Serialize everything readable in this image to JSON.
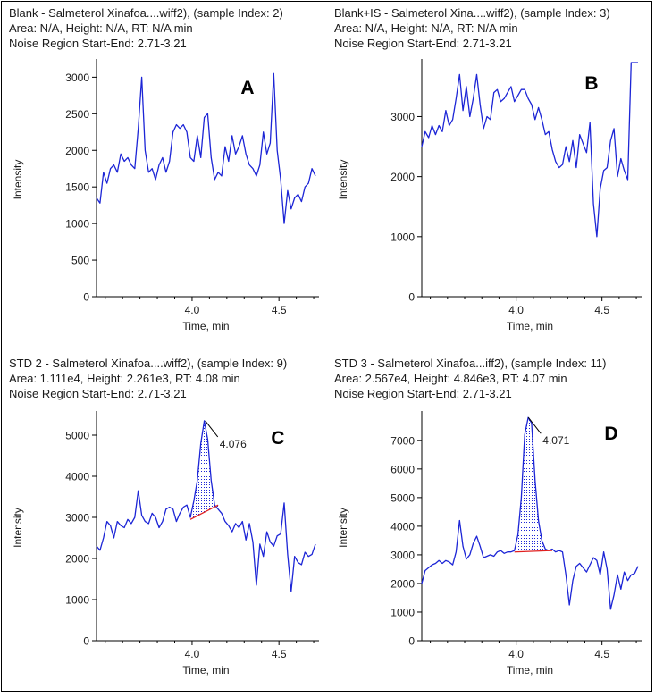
{
  "colors": {
    "trace": "#1c25d6",
    "baseline": "#e02020",
    "axis": "#000000",
    "text": "#1a1a1a"
  },
  "chart_data": [
    {
      "id": "A",
      "type": "line",
      "panel_letter": "A",
      "header": [
        "Blank - Salmeterol Xinafoa....wiff2), (sample Index: 2)",
        "Area: N/A, Height: N/A, RT: N/A min",
        "Noise Region Start-End: 2.71-3.21"
      ],
      "xlabel": "Time, min",
      "ylabel": "Intensity",
      "xlim": [
        3.45,
        4.71
      ],
      "ylim": [
        0,
        3200
      ],
      "x_ticks": [
        "4.0",
        "4.5"
      ],
      "x_tick_values": [
        4.0,
        4.5
      ],
      "y_ticks": [
        "0",
        "500",
        "1000",
        "1500",
        "2000",
        "2500",
        "3000"
      ],
      "y_tick_values": [
        0,
        500,
        1000,
        1500,
        2000,
        2500,
        3000
      ],
      "series": [
        {
          "x": [
            3.45,
            3.47,
            3.49,
            3.51,
            3.53,
            3.55,
            3.57,
            3.59,
            3.61,
            3.63,
            3.65,
            3.67,
            3.69,
            3.71,
            3.73,
            3.75,
            3.77,
            3.79,
            3.81,
            3.83,
            3.85,
            3.87,
            3.89,
            3.91,
            3.93,
            3.95,
            3.97,
            3.99,
            4.01,
            4.03,
            4.05,
            4.07,
            4.09,
            4.11,
            4.13,
            4.15,
            4.17,
            4.19,
            4.21,
            4.23,
            4.25,
            4.27,
            4.29,
            4.31,
            4.33,
            4.35,
            4.37,
            4.39,
            4.41,
            4.43,
            4.45,
            4.47,
            4.49,
            4.51,
            4.53,
            4.55,
            4.57,
            4.59,
            4.61,
            4.63,
            4.65,
            4.67,
            4.69,
            4.71
          ],
          "values": [
            1350,
            1280,
            1700,
            1550,
            1750,
            1800,
            1700,
            1950,
            1850,
            1900,
            1800,
            1750,
            2300,
            3000,
            2000,
            1700,
            1750,
            1600,
            1800,
            1900,
            1700,
            1850,
            2250,
            2350,
            2300,
            2350,
            2250,
            1900,
            1850,
            2200,
            1900,
            2450,
            2500,
            1900,
            1600,
            1700,
            1650,
            2050,
            1850,
            2200,
            1950,
            2050,
            2200,
            1950,
            1800,
            1750,
            1650,
            1800,
            2250,
            1950,
            2100,
            3050,
            2000,
            1600,
            1000,
            1450,
            1200,
            1350,
            1400,
            1300,
            1500,
            1550,
            1750,
            1650
          ]
        }
      ],
      "annotations": []
    },
    {
      "id": "B",
      "type": "line",
      "panel_letter": "B",
      "header": [
        "Blank+IS - Salmeterol Xina....wiff2), (sample Index: 3)",
        "Area: N/A, Height: N/A, RT: N/A min",
        "Noise Region Start-End: 2.71-3.21"
      ],
      "xlabel": "Time, min",
      "ylabel": "Intensity",
      "xlim": [
        3.45,
        4.71
      ],
      "ylim": [
        0,
        3900
      ],
      "x_ticks": [
        "4.0",
        "4.5"
      ],
      "x_tick_values": [
        4.0,
        4.5
      ],
      "y_ticks": [
        "0",
        "1000",
        "2000",
        "3000"
      ],
      "y_tick_values": [
        0,
        1000,
        2000,
        3000
      ],
      "series": [
        {
          "x": [
            3.45,
            3.47,
            3.49,
            3.51,
            3.53,
            3.55,
            3.57,
            3.59,
            3.61,
            3.63,
            3.65,
            3.67,
            3.69,
            3.71,
            3.73,
            3.75,
            3.77,
            3.79,
            3.81,
            3.83,
            3.85,
            3.87,
            3.89,
            3.91,
            3.93,
            3.95,
            3.97,
            3.99,
            4.01,
            4.03,
            4.05,
            4.07,
            4.09,
            4.11,
            4.13,
            4.15,
            4.17,
            4.19,
            4.21,
            4.23,
            4.25,
            4.27,
            4.29,
            4.31,
            4.33,
            4.35,
            4.37,
            4.39,
            4.41,
            4.43,
            4.45,
            4.47,
            4.49,
            4.51,
            4.53,
            4.55,
            4.57,
            4.59,
            4.61,
            4.63,
            4.65,
            4.67,
            4.69,
            4.71
          ],
          "values": [
            2500,
            2750,
            2650,
            2850,
            2700,
            2850,
            2750,
            3100,
            2850,
            2950,
            3300,
            3700,
            3100,
            3500,
            3000,
            3300,
            3700,
            3200,
            2800,
            3000,
            2950,
            3400,
            3450,
            3250,
            3300,
            3400,
            3500,
            3250,
            3350,
            3450,
            3450,
            3300,
            3200,
            2950,
            3150,
            2950,
            2700,
            2750,
            2450,
            2250,
            2150,
            2200,
            2500,
            2250,
            2600,
            2150,
            2700,
            2550,
            2400,
            2900,
            1550,
            1000,
            1800,
            2100,
            2150,
            2600,
            2800,
            2000,
            2300,
            2100,
            1950,
            3900,
            3900,
            3900
          ]
        }
      ],
      "annotations": []
    },
    {
      "id": "C",
      "type": "line",
      "panel_letter": "C",
      "header": [
        "STD 2 - Salmeterol Xinafoa....wiff2), (sample Index: 9)",
        "Area: 1.111e4, Height: 2.261e3, RT: 4.08 min",
        "Noise Region Start-End: 2.71-3.21"
      ],
      "xlabel": "Time, min",
      "ylabel": "Intensity",
      "xlim": [
        3.45,
        4.71
      ],
      "ylim": [
        0,
        5500
      ],
      "x_ticks": [
        "4.0",
        "4.5"
      ],
      "x_tick_values": [
        4.0,
        4.5
      ],
      "y_ticks": [
        "0",
        "1000",
        "2000",
        "3000",
        "4000",
        "5000"
      ],
      "y_tick_values": [
        0,
        1000,
        2000,
        3000,
        4000,
        5000
      ],
      "series": [
        {
          "x": [
            3.45,
            3.47,
            3.49,
            3.51,
            3.53,
            3.55,
            3.57,
            3.59,
            3.61,
            3.63,
            3.65,
            3.67,
            3.69,
            3.71,
            3.73,
            3.75,
            3.77,
            3.79,
            3.81,
            3.83,
            3.85,
            3.87,
            3.89,
            3.91,
            3.93,
            3.95,
            3.97,
            3.99,
            4.01,
            4.03,
            4.05,
            4.07,
            4.09,
            4.11,
            4.13,
            4.15,
            4.17,
            4.19,
            4.21,
            4.23,
            4.25,
            4.27,
            4.29,
            4.31,
            4.33,
            4.35,
            4.37,
            4.39,
            4.41,
            4.43,
            4.45,
            4.47,
            4.49,
            4.51,
            4.53,
            4.55,
            4.57,
            4.59,
            4.61,
            4.63,
            4.65,
            4.67,
            4.69,
            4.71
          ],
          "values": [
            2300,
            2200,
            2500,
            2900,
            2800,
            2500,
            2900,
            2800,
            2750,
            2950,
            2850,
            3000,
            3650,
            3050,
            2900,
            2850,
            3100,
            3000,
            2750,
            2900,
            3200,
            3250,
            3200,
            2900,
            3100,
            3250,
            3300,
            3000,
            3400,
            3900,
            4800,
            5350,
            4900,
            3900,
            3300,
            3200,
            3100,
            2900,
            2800,
            2650,
            2850,
            2750,
            2900,
            2450,
            2850,
            2400,
            1350,
            2350,
            2050,
            2650,
            2400,
            2300,
            2550,
            2600,
            3350,
            2100,
            1200,
            2050,
            1900,
            1850,
            2150,
            2050,
            2100,
            2350
          ]
        }
      ],
      "peak_fill_range": [
        3.99,
        4.15
      ],
      "baseline": {
        "x": [
          3.99,
          4.15
        ],
        "y": [
          2950,
          3300
        ]
      },
      "annotations": [
        {
          "text": "4.076",
          "x": 4.076,
          "y": 5350
        }
      ]
    },
    {
      "id": "D",
      "type": "line",
      "panel_letter": "D",
      "header": [
        "STD 3 - Salmeterol Xinafoa...iff2), (sample Index: 11)",
        "Area: 2.567e4, Height: 4.846e3, RT: 4.07 min",
        "Noise Region Start-End: 2.71-3.21"
      ],
      "xlabel": "Time, min",
      "ylabel": "Intensity",
      "xlim": [
        3.45,
        4.71
      ],
      "ylim": [
        0,
        7900
      ],
      "x_ticks": [
        "4.0",
        "4.5"
      ],
      "x_tick_values": [
        4.0,
        4.5
      ],
      "y_ticks": [
        "0",
        "1000",
        "2000",
        "3000",
        "4000",
        "5000",
        "6000",
        "7000"
      ],
      "y_tick_values": [
        0,
        1000,
        2000,
        3000,
        4000,
        5000,
        6000,
        7000
      ],
      "series": [
        {
          "x": [
            3.45,
            3.47,
            3.49,
            3.51,
            3.53,
            3.55,
            3.57,
            3.59,
            3.61,
            3.63,
            3.65,
            3.67,
            3.69,
            3.71,
            3.73,
            3.75,
            3.77,
            3.79,
            3.81,
            3.83,
            3.85,
            3.87,
            3.89,
            3.91,
            3.93,
            3.95,
            3.97,
            3.99,
            4.01,
            4.03,
            4.05,
            4.07,
            4.09,
            4.11,
            4.13,
            4.15,
            4.17,
            4.19,
            4.21,
            4.23,
            4.25,
            4.27,
            4.29,
            4.31,
            4.33,
            4.35,
            4.37,
            4.39,
            4.41,
            4.43,
            4.45,
            4.47,
            4.49,
            4.51,
            4.53,
            4.55,
            4.57,
            4.59,
            4.61,
            4.63,
            4.65,
            4.67,
            4.69,
            4.71
          ],
          "values": [
            2000,
            2450,
            2550,
            2650,
            2700,
            2800,
            2700,
            2800,
            2750,
            2650,
            3100,
            4200,
            3300,
            2850,
            3000,
            3400,
            3650,
            3300,
            2900,
            2950,
            3000,
            2950,
            3100,
            3150,
            3050,
            3100,
            3100,
            3150,
            3700,
            5000,
            7200,
            7800,
            7600,
            5600,
            4200,
            3500,
            3200,
            3150,
            3200,
            3100,
            3150,
            3100,
            2300,
            1250,
            2100,
            2600,
            2700,
            2550,
            2400,
            2650,
            2900,
            2800,
            2300,
            3100,
            2500,
            1100,
            1600,
            2300,
            1800,
            2400,
            2100,
            2300,
            2350,
            2600
          ]
        }
      ],
      "peak_fill_range": [
        3.99,
        4.21
      ],
      "baseline": {
        "x": [
          3.99,
          4.21
        ],
        "y": [
          3100,
          3150
        ]
      },
      "annotations": [
        {
          "text": "4.071",
          "x": 4.071,
          "y": 7800
        }
      ]
    }
  ]
}
